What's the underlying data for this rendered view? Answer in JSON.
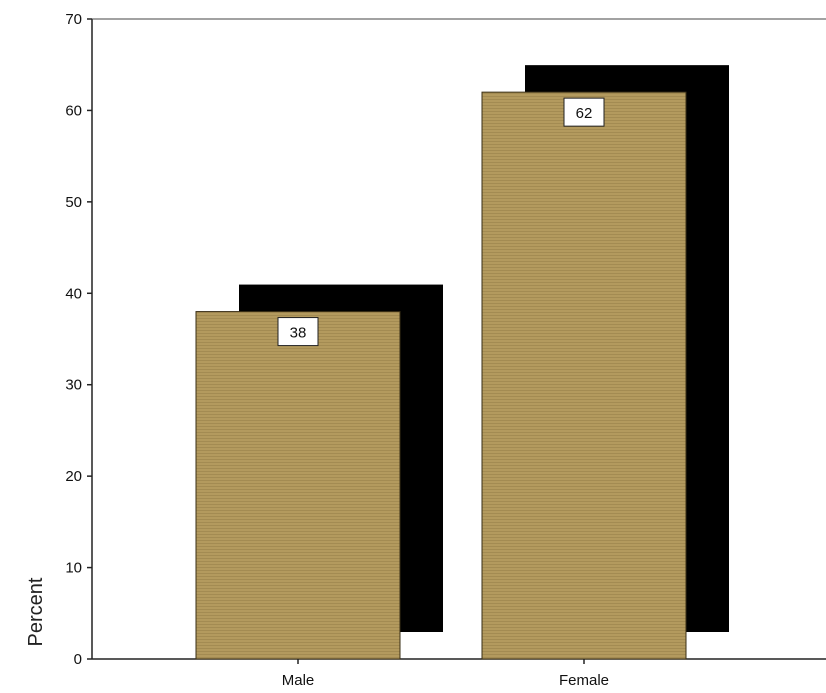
{
  "chart_data": {
    "type": "bar",
    "categories": [
      "Male",
      "Female"
    ],
    "values": [
      38,
      62
    ],
    "data_labels": [
      "38",
      "62"
    ],
    "title": "",
    "xlabel": "",
    "ylabel": "Percent",
    "ylim": [
      0,
      70
    ],
    "yticks": [
      0,
      10,
      20,
      30,
      40,
      50,
      60,
      70
    ],
    "grid": false,
    "legend": "none",
    "bar_style": "3d-shadow",
    "colors": {
      "bar": "#b39a5e",
      "shadow": "#000000",
      "label_box": "#ffffff"
    }
  }
}
